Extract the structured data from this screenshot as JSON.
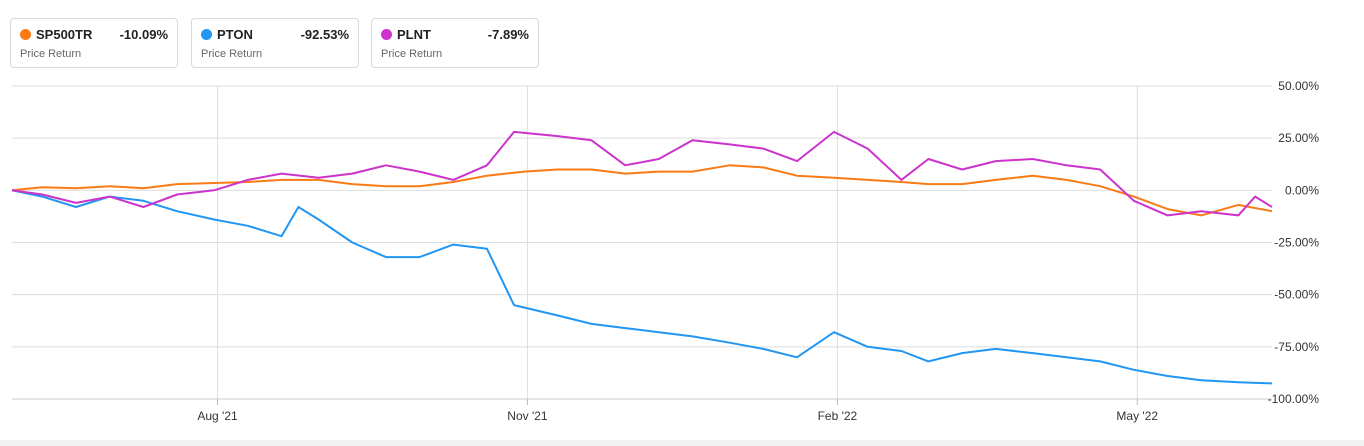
{
  "legend": [
    {
      "ticker": "SP500TR",
      "return": "-10.09%",
      "sub": "Price Return",
      "color": "#f97b16"
    },
    {
      "ticker": "PTON",
      "return": "-92.53%",
      "sub": "Price Return",
      "color": "#2196f3"
    },
    {
      "ticker": "PLNT",
      "return": "-7.89%",
      "sub": "Price Return",
      "color": "#cc33cc"
    }
  ],
  "chart_data": {
    "type": "line",
    "ylim": [
      -100,
      50
    ],
    "yticks": [
      50,
      25,
      0,
      -25,
      -50,
      -75,
      -100
    ],
    "ytick_labels": [
      "50.00%",
      "25.00%",
      "0.00%",
      "-25.00%",
      "-50.00%",
      "-75.00%",
      "-100.00%"
    ],
    "xlim": [
      "2021-06-01",
      "2022-06-10"
    ],
    "xticks": [
      "2021-08-01",
      "2021-11-01",
      "2022-02-01",
      "2022-05-01"
    ],
    "xtick_labels": [
      "Aug '21",
      "Nov '21",
      "Feb '22",
      "May '22"
    ],
    "grid": true,
    "legend_position": "top-left",
    "series": [
      {
        "name": "SP500TR",
        "color": "#f97b16",
        "points": [
          [
            "2021-06-01",
            0
          ],
          [
            "2021-06-10",
            1.5
          ],
          [
            "2021-06-20",
            1
          ],
          [
            "2021-06-30",
            2
          ],
          [
            "2021-07-10",
            1
          ],
          [
            "2021-07-20",
            3
          ],
          [
            "2021-07-31",
            3.5
          ],
          [
            "2021-08-10",
            4
          ],
          [
            "2021-08-20",
            5
          ],
          [
            "2021-08-31",
            5
          ],
          [
            "2021-09-10",
            3
          ],
          [
            "2021-09-20",
            2
          ],
          [
            "2021-09-30",
            2
          ],
          [
            "2021-10-10",
            4
          ],
          [
            "2021-10-20",
            7
          ],
          [
            "2021-10-31",
            9
          ],
          [
            "2021-11-10",
            10
          ],
          [
            "2021-11-20",
            10
          ],
          [
            "2021-11-30",
            8
          ],
          [
            "2021-12-10",
            9
          ],
          [
            "2021-12-20",
            9
          ],
          [
            "2021-12-31",
            12
          ],
          [
            "2022-01-10",
            11
          ],
          [
            "2022-01-20",
            7
          ],
          [
            "2022-01-31",
            6
          ],
          [
            "2022-02-10",
            5
          ],
          [
            "2022-02-20",
            4
          ],
          [
            "2022-02-28",
            3
          ],
          [
            "2022-03-10",
            3
          ],
          [
            "2022-03-20",
            5
          ],
          [
            "2022-03-31",
            7
          ],
          [
            "2022-04-10",
            5
          ],
          [
            "2022-04-20",
            2
          ],
          [
            "2022-04-30",
            -3
          ],
          [
            "2022-05-10",
            -9
          ],
          [
            "2022-05-20",
            -12
          ],
          [
            "2022-05-31",
            -7
          ],
          [
            "2022-06-10",
            -10
          ]
        ]
      },
      {
        "name": "PTON",
        "color": "#2196f3",
        "points": [
          [
            "2021-06-01",
            0
          ],
          [
            "2021-06-10",
            -3
          ],
          [
            "2021-06-20",
            -8
          ],
          [
            "2021-06-30",
            -3
          ],
          [
            "2021-07-10",
            -5
          ],
          [
            "2021-07-20",
            -10
          ],
          [
            "2021-07-31",
            -14
          ],
          [
            "2021-08-10",
            -17
          ],
          [
            "2021-08-20",
            -22
          ],
          [
            "2021-08-25",
            -8
          ],
          [
            "2021-08-31",
            -14
          ],
          [
            "2021-09-10",
            -25
          ],
          [
            "2021-09-20",
            -32
          ],
          [
            "2021-09-30",
            -32
          ],
          [
            "2021-10-10",
            -26
          ],
          [
            "2021-10-20",
            -28
          ],
          [
            "2021-10-28",
            -55
          ],
          [
            "2021-11-10",
            -60
          ],
          [
            "2021-11-20",
            -64
          ],
          [
            "2021-11-30",
            -66
          ],
          [
            "2021-12-10",
            -68
          ],
          [
            "2021-12-20",
            -70
          ],
          [
            "2021-12-31",
            -73
          ],
          [
            "2022-01-10",
            -76
          ],
          [
            "2022-01-20",
            -80
          ],
          [
            "2022-01-31",
            -68
          ],
          [
            "2022-02-10",
            -75
          ],
          [
            "2022-02-20",
            -77
          ],
          [
            "2022-02-28",
            -82
          ],
          [
            "2022-03-10",
            -78
          ],
          [
            "2022-03-20",
            -76
          ],
          [
            "2022-03-31",
            -78
          ],
          [
            "2022-04-10",
            -80
          ],
          [
            "2022-04-20",
            -82
          ],
          [
            "2022-04-30",
            -86
          ],
          [
            "2022-05-10",
            -89
          ],
          [
            "2022-05-20",
            -91
          ],
          [
            "2022-05-31",
            -92
          ],
          [
            "2022-06-10",
            -92.5
          ]
        ]
      },
      {
        "name": "PLNT",
        "color": "#cc33cc",
        "points": [
          [
            "2021-06-01",
            0
          ],
          [
            "2021-06-10",
            -2
          ],
          [
            "2021-06-20",
            -6
          ],
          [
            "2021-06-30",
            -3
          ],
          [
            "2021-07-10",
            -8
          ],
          [
            "2021-07-20",
            -2
          ],
          [
            "2021-07-31",
            0
          ],
          [
            "2021-08-10",
            5
          ],
          [
            "2021-08-20",
            8
          ],
          [
            "2021-08-31",
            6
          ],
          [
            "2021-09-10",
            8
          ],
          [
            "2021-09-20",
            12
          ],
          [
            "2021-09-30",
            9
          ],
          [
            "2021-10-10",
            5
          ],
          [
            "2021-10-20",
            12
          ],
          [
            "2021-10-28",
            28
          ],
          [
            "2021-11-10",
            26
          ],
          [
            "2021-11-20",
            24
          ],
          [
            "2021-11-30",
            12
          ],
          [
            "2021-12-10",
            15
          ],
          [
            "2021-12-20",
            24
          ],
          [
            "2021-12-31",
            22
          ],
          [
            "2022-01-10",
            20
          ],
          [
            "2022-01-20",
            14
          ],
          [
            "2022-01-31",
            28
          ],
          [
            "2022-02-10",
            20
          ],
          [
            "2022-02-20",
            5
          ],
          [
            "2022-02-28",
            15
          ],
          [
            "2022-03-10",
            10
          ],
          [
            "2022-03-20",
            14
          ],
          [
            "2022-03-31",
            15
          ],
          [
            "2022-04-10",
            12
          ],
          [
            "2022-04-20",
            10
          ],
          [
            "2022-04-30",
            -5
          ],
          [
            "2022-05-10",
            -12
          ],
          [
            "2022-05-20",
            -10
          ],
          [
            "2022-05-31",
            -12
          ],
          [
            "2022-06-05",
            -3
          ],
          [
            "2022-06-10",
            -8
          ]
        ]
      }
    ]
  }
}
